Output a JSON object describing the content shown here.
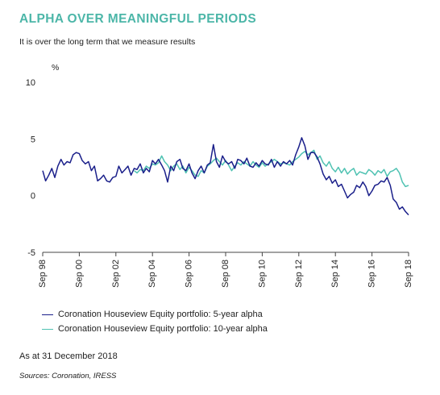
{
  "header": {
    "title": "ALPHA OVER MEANINGFUL PERIODS",
    "subtitle": "It is over the long term that we measure results"
  },
  "footer": {
    "as_at": "As at 31 December 2018",
    "sources": "Sources: Coronation, IRESS"
  },
  "colors": {
    "title": "#4cb6a8",
    "series_5yr": "#1a1f8a",
    "series_10yr": "#4fc2b2",
    "axis": "#444444"
  },
  "chart_data": {
    "type": "line",
    "title": "",
    "xlabel": "",
    "ylabel": "%",
    "xlim": [
      1998.67,
      2018.67
    ],
    "ylim": [
      -5,
      10
    ],
    "yticks": [
      10,
      5,
      0,
      -5
    ],
    "ytick_labels": [
      "10",
      "5",
      "0",
      "-5"
    ],
    "xticks": [
      1998.67,
      2000.67,
      2002.67,
      2004.67,
      2006.67,
      2008.67,
      2010.67,
      2012.67,
      2014.67,
      2016.67,
      2018.67
    ],
    "xtick_labels": [
      "Sep 98",
      "Sep 00",
      "Sep 02",
      "Sep 04",
      "Sep 06",
      "Sep 08",
      "Sep 10",
      "Sep 12",
      "Sep 14",
      "Sep 16",
      "Sep 18"
    ],
    "grid": false,
    "legend": "bottom-left",
    "series": [
      {
        "name": "Coronation Houseview Equity portfolio: 5-year alpha",
        "color": "#1a1f8a",
        "x": [
          1998.67,
          1998.83,
          1999.0,
          1999.17,
          1999.33,
          1999.5,
          1999.67,
          1999.83,
          2000.0,
          2000.17,
          2000.33,
          2000.5,
          2000.67,
          2000.83,
          2001.0,
          2001.17,
          2001.33,
          2001.5,
          2001.67,
          2001.83,
          2002.0,
          2002.17,
          2002.33,
          2002.5,
          2002.67,
          2002.83,
          2003.0,
          2003.17,
          2003.33,
          2003.5,
          2003.67,
          2003.83,
          2004.0,
          2004.17,
          2004.33,
          2004.5,
          2004.67,
          2004.83,
          2005.0,
          2005.17,
          2005.33,
          2005.5,
          2005.67,
          2005.83,
          2006.0,
          2006.17,
          2006.33,
          2006.5,
          2006.67,
          2006.83,
          2007.0,
          2007.17,
          2007.33,
          2007.5,
          2007.67,
          2007.83,
          2008.0,
          2008.17,
          2008.33,
          2008.5,
          2008.67,
          2008.83,
          2009.0,
          2009.17,
          2009.33,
          2009.5,
          2009.67,
          2009.83,
          2010.0,
          2010.17,
          2010.33,
          2010.5,
          2010.67,
          2010.83,
          2011.0,
          2011.17,
          2011.33,
          2011.5,
          2011.67,
          2011.83,
          2012.0,
          2012.17,
          2012.33,
          2012.5,
          2012.67,
          2012.83,
          2013.0,
          2013.17,
          2013.33,
          2013.5,
          2013.67,
          2013.83,
          2014.0,
          2014.17,
          2014.33,
          2014.5,
          2014.67,
          2014.83,
          2015.0,
          2015.17,
          2015.33,
          2015.5,
          2015.67,
          2015.83,
          2016.0,
          2016.17,
          2016.33,
          2016.5,
          2016.67,
          2016.83,
          2017.0,
          2017.17,
          2017.33,
          2017.5,
          2017.67,
          2017.83,
          2018.0,
          2018.17,
          2018.33,
          2018.5,
          2018.67
        ],
        "y": [
          2.2,
          1.3,
          1.8,
          2.4,
          1.6,
          2.6,
          3.2,
          2.7,
          3.0,
          2.9,
          3.6,
          3.8,
          3.7,
          3.1,
          2.8,
          3.0,
          2.2,
          2.6,
          1.3,
          1.5,
          1.8,
          1.3,
          1.2,
          1.6,
          1.7,
          2.6,
          2.0,
          2.3,
          2.6,
          1.8,
          2.4,
          2.3,
          2.8,
          2.0,
          2.4,
          2.1,
          3.1,
          2.8,
          3.2,
          2.7,
          2.2,
          1.2,
          2.6,
          2.2,
          3.0,
          3.2,
          2.4,
          2.2,
          2.8,
          2.0,
          1.5,
          2.2,
          2.6,
          2.0,
          2.7,
          2.9,
          4.5,
          3.0,
          2.5,
          3.5,
          3.0,
          2.8,
          3.0,
          2.4,
          3.2,
          3.1,
          2.8,
          3.3,
          2.6,
          2.5,
          2.9,
          2.6,
          3.1,
          2.8,
          2.7,
          3.2,
          2.5,
          3.0,
          2.6,
          3.0,
          2.8,
          3.1,
          2.7,
          3.6,
          4.3,
          5.1,
          4.4,
          3.2,
          3.8,
          3.8,
          3.4,
          2.8,
          1.9,
          1.4,
          1.7,
          1.1,
          1.4,
          0.8,
          1.0,
          0.4,
          -0.2,
          0.1,
          0.3,
          0.9,
          0.7,
          1.2,
          0.8,
          0.0,
          0.4,
          0.9,
          1.0,
          1.3,
          1.2,
          1.6,
          0.9,
          -0.3,
          -0.6,
          -1.2,
          -1.0,
          -1.4,
          -1.7
        ]
      },
      {
        "name": "Coronation Houseview Equity portfolio: 10-year alpha",
        "color": "#4fc2b2",
        "x": [
          2003.67,
          2003.83,
          2004.0,
          2004.17,
          2004.33,
          2004.5,
          2004.67,
          2004.83,
          2005.0,
          2005.17,
          2005.33,
          2005.5,
          2005.67,
          2005.83,
          2006.0,
          2006.17,
          2006.33,
          2006.5,
          2006.67,
          2006.83,
          2007.0,
          2007.17,
          2007.33,
          2007.5,
          2007.67,
          2007.83,
          2008.0,
          2008.17,
          2008.33,
          2008.5,
          2008.67,
          2008.83,
          2009.0,
          2009.17,
          2009.33,
          2009.5,
          2009.67,
          2009.83,
          2010.0,
          2010.17,
          2010.33,
          2010.5,
          2010.67,
          2010.83,
          2011.0,
          2011.17,
          2011.33,
          2011.5,
          2011.67,
          2011.83,
          2012.0,
          2012.17,
          2012.33,
          2012.5,
          2012.67,
          2012.83,
          2013.0,
          2013.17,
          2013.33,
          2013.5,
          2013.67,
          2013.83,
          2014.0,
          2014.17,
          2014.33,
          2014.5,
          2014.67,
          2014.83,
          2015.0,
          2015.17,
          2015.33,
          2015.5,
          2015.67,
          2015.83,
          2016.0,
          2016.17,
          2016.33,
          2016.5,
          2016.67,
          2016.83,
          2017.0,
          2017.17,
          2017.33,
          2017.5,
          2017.67,
          2017.83,
          2018.0,
          2018.17,
          2018.33,
          2018.5,
          2018.67
        ],
        "y": [
          2.2,
          2.0,
          2.3,
          2.2,
          2.6,
          2.4,
          2.8,
          2.7,
          2.9,
          3.5,
          3.0,
          2.7,
          2.2,
          2.6,
          2.8,
          2.3,
          2.6,
          2.0,
          2.5,
          2.2,
          1.8,
          1.7,
          2.2,
          2.0,
          2.6,
          2.8,
          3.1,
          3.3,
          3.0,
          2.7,
          3.1,
          2.7,
          2.2,
          2.6,
          2.9,
          2.7,
          3.0,
          2.8,
          2.6,
          3.0,
          2.7,
          2.5,
          2.9,
          2.6,
          2.8,
          3.0,
          3.2,
          3.0,
          2.8,
          2.9,
          2.8,
          2.7,
          3.0,
          3.2,
          3.4,
          3.7,
          3.9,
          3.6,
          3.8,
          4.0,
          3.2,
          3.5,
          2.9,
          2.6,
          3.0,
          2.4,
          2.1,
          2.5,
          2.0,
          2.4,
          1.9,
          2.2,
          2.4,
          1.8,
          2.1,
          2.0,
          1.9,
          2.3,
          2.1,
          1.8,
          2.2,
          2.0,
          2.3,
          1.7,
          2.1,
          2.2,
          2.4,
          2.0,
          1.2,
          0.8,
          0.9
        ]
      }
    ]
  }
}
